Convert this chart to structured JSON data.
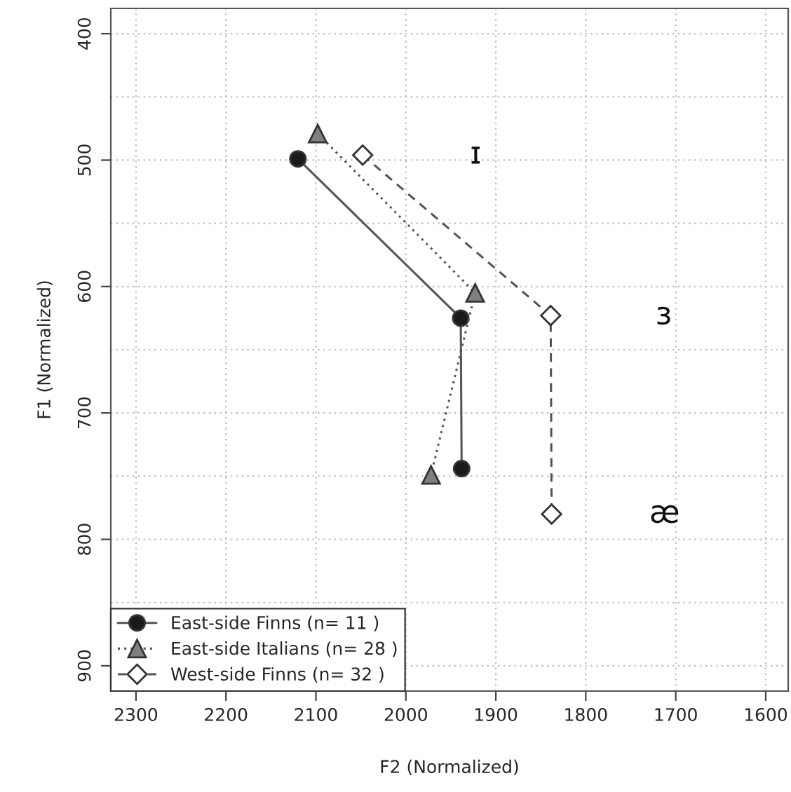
{
  "chart_data": {
    "type": "line",
    "xlabel": "F2 (Normalized)",
    "ylabel": "F1 (Normalized)",
    "xlim": [
      2328,
      1575
    ],
    "ylim": [
      920,
      380
    ],
    "xticks": [
      2300,
      2200,
      2100,
      2000,
      1900,
      1800,
      1700,
      1600
    ],
    "yticks": [
      400,
      {
        "value": 450,
        "label": null
      },
      500,
      {
        "value": 550,
        "label": null
      },
      600,
      {
        "value": 650,
        "label": null
      },
      700,
      {
        "value": 750,
        "label": null
      },
      800,
      {
        "value": 850,
        "label": null
      },
      900
    ],
    "grid": true,
    "legend": "bottom left",
    "series": [
      {
        "name": "East-side Finns (n= 11 )",
        "color": "#1a1a1a",
        "marker": "circle",
        "line_style": "solid",
        "x": [
          2120,
          1939,
          1938
        ],
        "values": [
          499,
          625,
          744
        ]
      },
      {
        "name": "East-side Italians (n= 28 )",
        "color": "#808080",
        "marker": "triangle",
        "line_style": "dotted",
        "x": [
          2098,
          1923,
          1972
        ],
        "values": [
          479,
          605,
          749
        ]
      },
      {
        "name": "West-side Finns (n= 32 )",
        "color": "#ffffff",
        "marker": "diamond",
        "line_style": "dashed",
        "x": [
          2048,
          1839,
          1838
        ],
        "values": [
          496,
          623,
          780
        ]
      }
    ],
    "annotations": [
      "ɪ",
      "ɜ",
      "æ"
    ]
  }
}
